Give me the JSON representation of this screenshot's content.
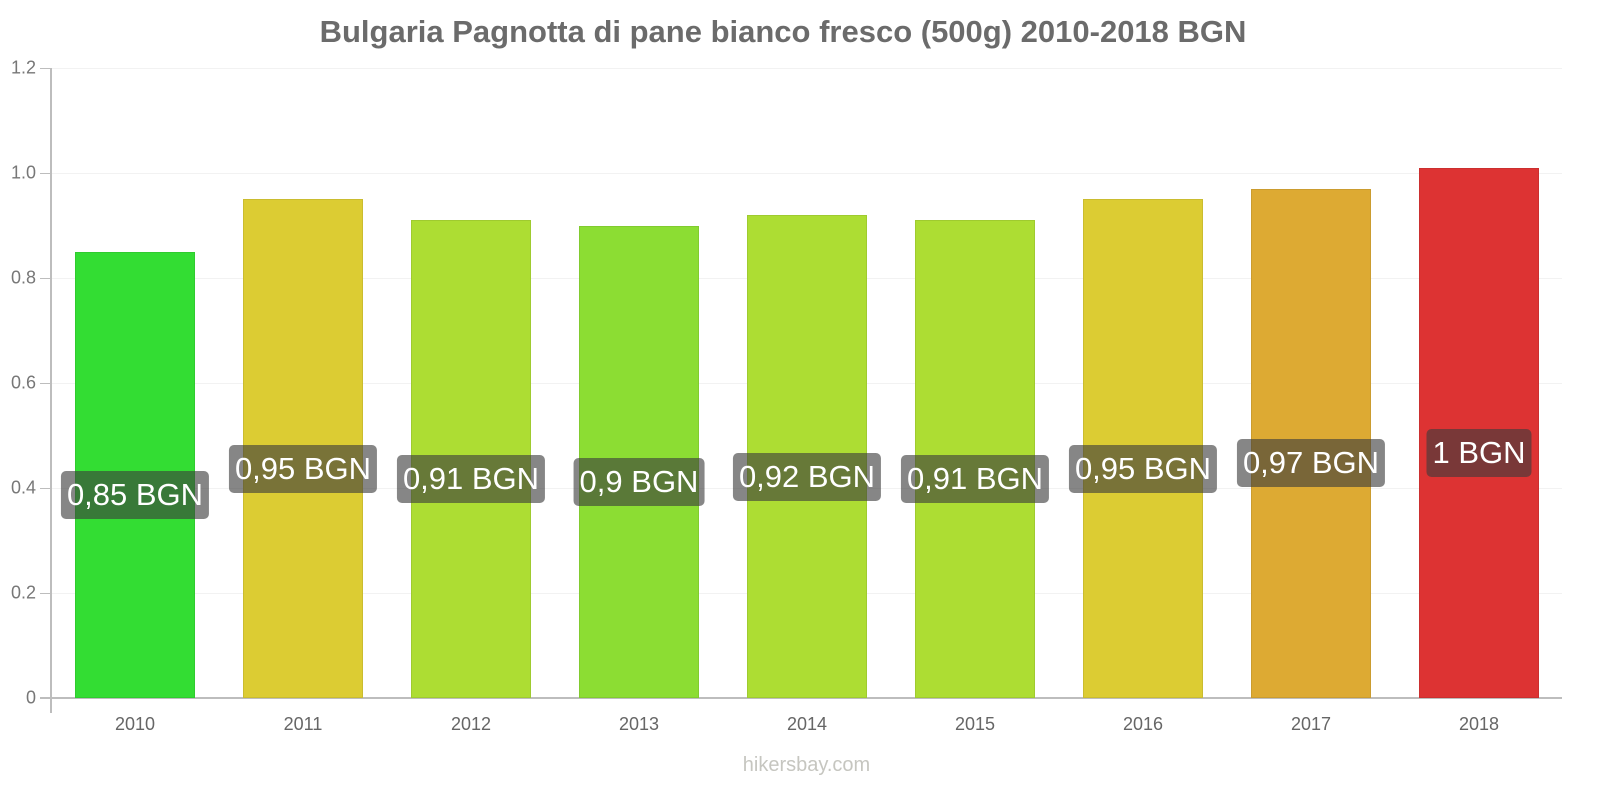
{
  "chart_data": {
    "type": "bar",
    "title": "Bulgaria Pagnotta di pane bianco fresco (500g) 2010-2018 BGN",
    "xlabel": "",
    "ylabel": "",
    "categories": [
      "2010",
      "2011",
      "2012",
      "2013",
      "2014",
      "2015",
      "2016",
      "2017",
      "2018"
    ],
    "values": [
      0.85,
      0.95,
      0.91,
      0.9,
      0.92,
      0.91,
      0.95,
      0.97,
      1.01
    ],
    "data_labels": [
      "0,85 BGN",
      "0,95 BGN",
      "0,91 BGN",
      "0,9 BGN",
      "0,92 BGN",
      "0,91 BGN",
      "0,95 BGN",
      "0,97 BGN",
      "1 BGN"
    ],
    "bar_colors": [
      "#33dd33",
      "#dccc33",
      "#addd33",
      "#8cdd33",
      "#addd33",
      "#addd33",
      "#dccc33",
      "#ddaa33",
      "#dd3333"
    ],
    "ylim": [
      0,
      1.2
    ],
    "yticks": [
      "0",
      "0.2",
      "0.4",
      "0.6",
      "0.8",
      "1.0",
      "1.2"
    ],
    "grid": true,
    "legend": null,
    "unit": "BGN"
  },
  "footer": {
    "watermark": "hikersbay.com"
  }
}
